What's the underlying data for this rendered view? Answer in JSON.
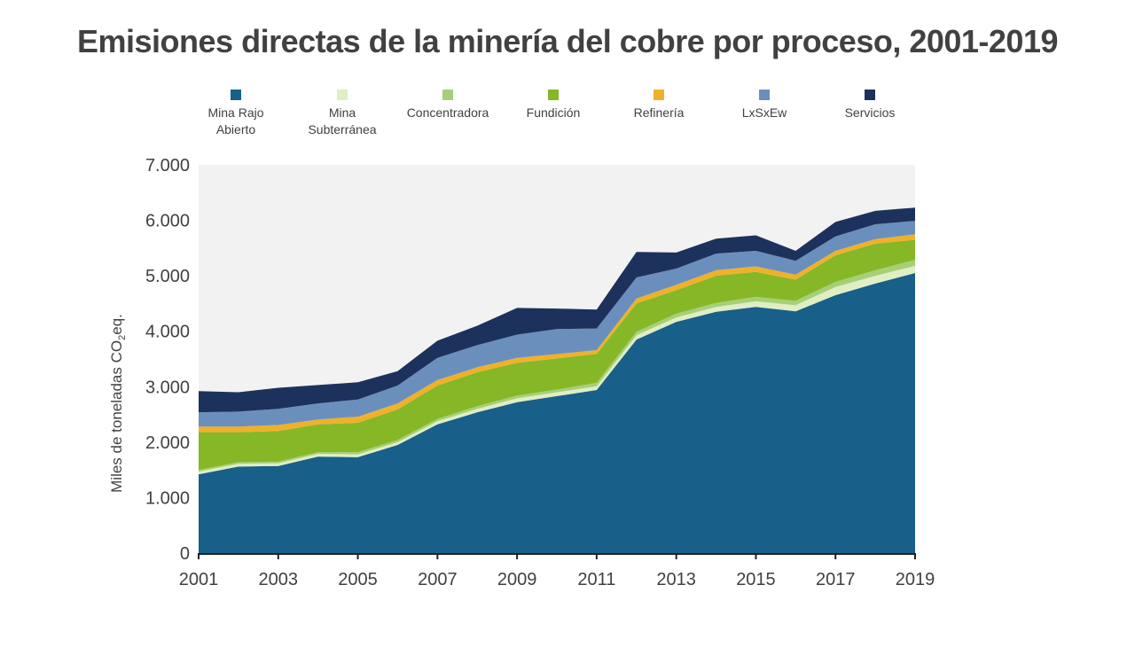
{
  "title": "Emisiones directas de la minería del cobre por proceso, 2001-2019",
  "chart_data": {
    "type": "area",
    "stacked": true,
    "title": "Emisiones directas de la minería del cobre por proceso, 2001-2019",
    "xlabel": "",
    "ylabel": "Miles de toneladas CO₂eq.",
    "ylabel_parts": {
      "pre": "Miles de toneladas CO",
      "sub": "2",
      "post": "eq."
    },
    "ylim": [
      0,
      7000
    ],
    "yticks": [
      0,
      1000,
      2000,
      3000,
      4000,
      5000,
      6000,
      7000
    ],
    "ytick_labels": [
      "0",
      "1.000",
      "2.000",
      "3.000",
      "4.000",
      "5.000",
      "6.000",
      "7.000"
    ],
    "xlim": [
      2001,
      2019
    ],
    "xticks": [
      2001,
      2003,
      2005,
      2007,
      2009,
      2011,
      2013,
      2015,
      2017,
      2019
    ],
    "xtick_labels": [
      "2001",
      "2003",
      "2005",
      "2007",
      "2009",
      "2011",
      "2013",
      "2015",
      "2017",
      "2019"
    ],
    "grid": false,
    "legend_position": "top",
    "x": [
      2001,
      2002,
      2003,
      2004,
      2005,
      2006,
      2007,
      2008,
      2009,
      2010,
      2011,
      2012,
      2013,
      2014,
      2015,
      2016,
      2017,
      2018,
      2019
    ],
    "series": [
      {
        "name": "Mina Rajo Abierto",
        "label_lines": [
          "Mina Rajo",
          "Abierto"
        ],
        "color": "#185f8a",
        "values": [
          1420,
          1560,
          1570,
          1740,
          1730,
          1950,
          2320,
          2540,
          2720,
          2830,
          2940,
          3850,
          4170,
          4350,
          4440,
          4360,
          4650,
          4860,
          5050
        ]
      },
      {
        "name": "Mina Subterránea",
        "label_lines": [
          "Mina",
          "Subterránea"
        ],
        "color": "#dfeec3",
        "values": [
          50,
          50,
          50,
          50,
          50,
          50,
          60,
          60,
          70,
          70,
          70,
          80,
          80,
          90,
          100,
          110,
          150,
          140,
          130
        ]
      },
      {
        "name": "Concentradora",
        "label_lines": [
          "Concentradora"
        ],
        "color": "#a6cf77",
        "values": [
          30,
          30,
          30,
          30,
          40,
          40,
          40,
          50,
          50,
          50,
          60,
          60,
          70,
          70,
          80,
          80,
          90,
          100,
          110
        ]
      },
      {
        "name": "Fundición",
        "label_lines": [
          "Fundición"
        ],
        "color": "#86b726",
        "values": [
          680,
          540,
          550,
          500,
          530,
          550,
          600,
          610,
          590,
          560,
          520,
          510,
          420,
          490,
          450,
          380,
          480,
          480,
          360
        ]
      },
      {
        "name": "Refinería",
        "label_lines": [
          "Refinería"
        ],
        "color": "#efb12b",
        "values": [
          100,
          100,
          110,
          90,
          110,
          110,
          100,
          90,
          90,
          80,
          70,
          90,
          100,
          100,
          100,
          90,
          80,
          80,
          100
        ]
      },
      {
        "name": "LxSxEw",
        "label_lines": [
          "LxSxEw"
        ],
        "color": "#6a8fbd",
        "values": [
          260,
          270,
          290,
          290,
          310,
          320,
          400,
          400,
          420,
          450,
          390,
          380,
          290,
          300,
          280,
          250,
          260,
          270,
          240
        ]
      },
      {
        "name": "Servicios",
        "label_lines": [
          "Servicios"
        ],
        "color": "#1c325c",
        "values": [
          380,
          350,
          380,
          330,
          310,
          260,
          310,
          350,
          480,
          370,
          340,
          460,
          290,
          270,
          280,
          180,
          260,
          240,
          240
        ]
      }
    ],
    "plot_background": "#f2f2f2"
  }
}
